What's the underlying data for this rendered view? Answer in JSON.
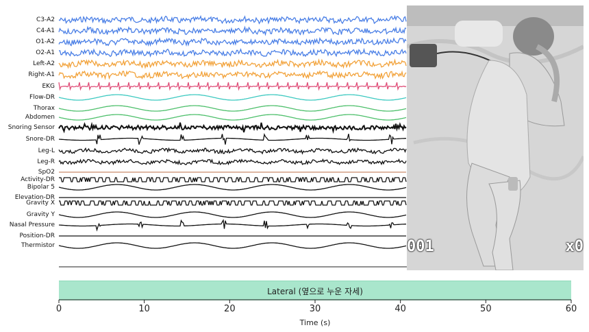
{
  "channels": [
    {
      "label": "C3-A2",
      "color": "#4a7fe6"
    },
    {
      "label": "C4-A1",
      "color": "#4a7fe6"
    },
    {
      "label": "O1-A2",
      "color": "#4a7fe6"
    },
    {
      "label": "O2-A1",
      "color": "#4a7fe6"
    },
    {
      "label": "Left-A2",
      "color": "#f2a23a"
    },
    {
      "label": "Right-A1",
      "color": "#f2a23a"
    },
    {
      "label": "EKG",
      "color": "#e0507a"
    },
    {
      "label": "Flow-DR",
      "color": "#3cc9c0"
    },
    {
      "label": "Thorax",
      "color": "#4cbf6a"
    },
    {
      "label": "Abdomen",
      "color": "#4cbf6a"
    },
    {
      "label": "Snoring Sensor",
      "color": "#111111"
    },
    {
      "label": "Snore-DR",
      "color": "#111111"
    },
    {
      "label": "Leg-L",
      "color": "#111111"
    },
    {
      "label": "Leg-R",
      "color": "#111111"
    },
    {
      "label": "SpO2",
      "color": "#c98a6a"
    },
    {
      "label": "Activity-DR",
      "color": "#111111"
    },
    {
      "label": "Bipolar 5",
      "color": "#111111"
    },
    {
      "label": "Elevation-DR",
      "color": "#111111"
    },
    {
      "label": "Gravity X",
      "color": "#111111"
    },
    {
      "label": "Gravity Y",
      "color": "#111111"
    },
    {
      "label": "Nasal Pressure",
      "color": "#111111"
    },
    {
      "label": "Position-DR",
      "color": "#111111"
    },
    {
      "label": "Thermistor",
      "color": "#111111"
    }
  ],
  "video": {
    "counter_left": "001",
    "counter_right": "x0"
  },
  "position_bar": {
    "label": "Lateral (옆으로 누운 자세)",
    "color": "#a9e6cc"
  },
  "time_axis": {
    "ticks": [
      "0",
      "10",
      "20",
      "30",
      "40",
      "50",
      "60"
    ],
    "label": "Time (s)",
    "range": [
      0,
      60
    ]
  }
}
